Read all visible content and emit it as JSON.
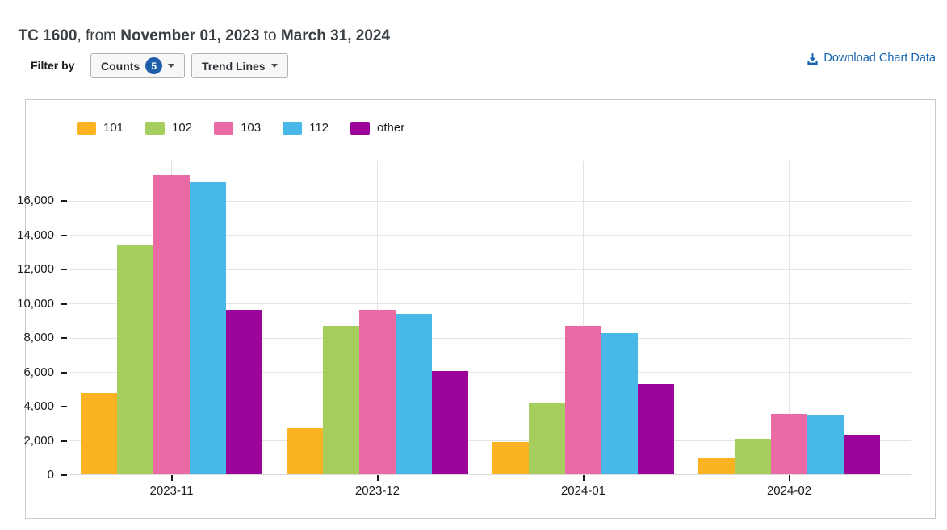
{
  "header": {
    "report_code": "TC 1600",
    "from_text": ", from ",
    "date_start": "November 01, 2023",
    "to_text": " to ",
    "date_end": "March 31, 2024"
  },
  "toolbar": {
    "filter_label": "Filter by",
    "counts_button": {
      "label": "Counts",
      "badge": "5"
    },
    "trend_lines_button": {
      "label": "Trend Lines"
    },
    "download_link": "Download Chart Data"
  },
  "icons": {
    "download": "download-icon",
    "dropdown_caret": "chevron-down-icon"
  },
  "colors": {
    "link_blue": "#1262b0",
    "badge_blue": "#1f5ea9",
    "card_border": "#c9c9c9",
    "gridline": "#e4e4e4",
    "axis_text": "#1b1b1b",
    "title_text": "#3a3f44"
  },
  "chart_data": {
    "type": "bar",
    "categories": [
      "2023-11",
      "2023-12",
      "2024-01",
      "2024-02"
    ],
    "series": [
      {
        "name": "101",
        "color": "#FBB321",
        "values": [
          4800,
          2800,
          1950,
          1000
        ]
      },
      {
        "name": "102",
        "color": "#A5CE5E",
        "values": [
          13400,
          8700,
          4250,
          2100
        ]
      },
      {
        "name": "103",
        "color": "#EA6AA5",
        "values": [
          17500,
          9650,
          8700,
          3600
        ]
      },
      {
        "name": "112",
        "color": "#48B8E8",
        "values": [
          17100,
          9400,
          8300,
          3550
        ]
      },
      {
        "name": "other",
        "color": "#9B0599",
        "values": [
          9650,
          6050,
          5300,
          2350
        ]
      }
    ],
    "y_ticks": [
      0,
      2000,
      4000,
      6000,
      8000,
      10000,
      12000,
      14000,
      16000
    ],
    "ylim": [
      0,
      18400
    ],
    "xlabel": "",
    "ylabel": "",
    "title": "",
    "grid": true,
    "legend_position": "top-left"
  }
}
